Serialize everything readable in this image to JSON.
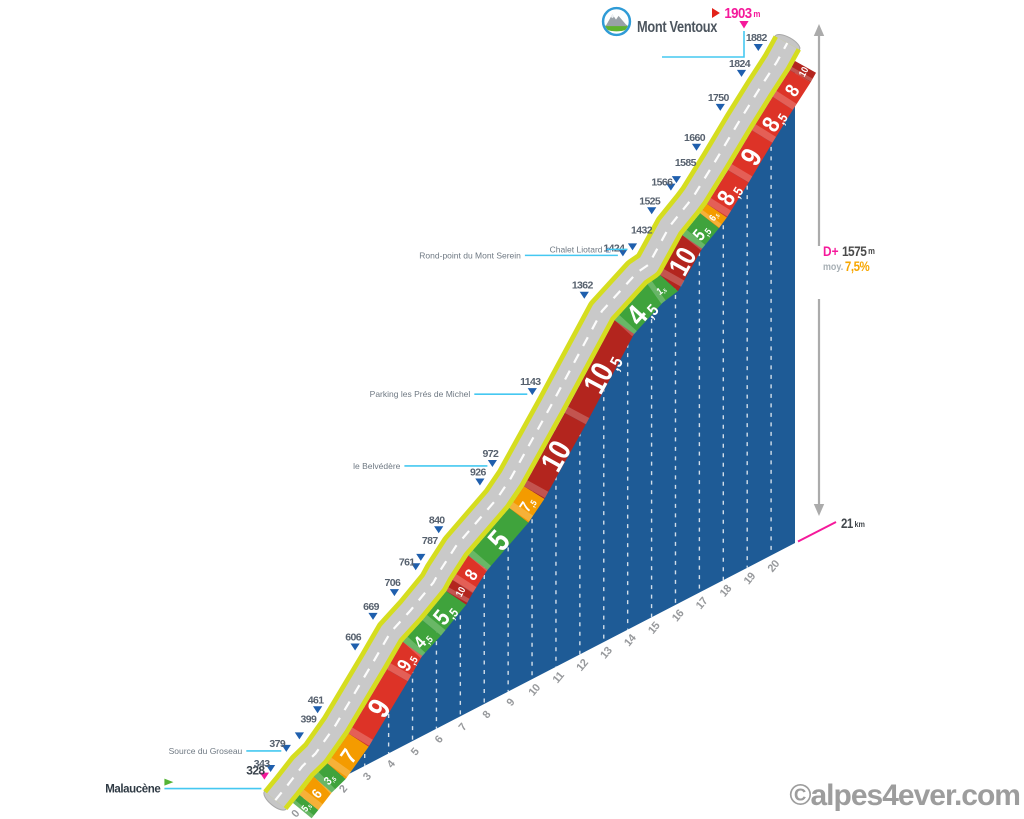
{
  "header": {
    "title": "Mont Ventoux",
    "summit_value": "1903",
    "summit_unit": "m"
  },
  "stats": {
    "dplus_label": "D+",
    "dplus_value": "1575",
    "dplus_unit": "m",
    "avg_label": "moy.",
    "avg_value": "7,5%",
    "distance_value": "21",
    "distance_unit": "km"
  },
  "watermark": "©alpes4ever.com",
  "chart_data": {
    "type": "area",
    "start": {
      "name": "Malaucène",
      "altitude_m": 328
    },
    "summit": {
      "name": "Mont Ventoux",
      "altitude_m": 1903
    },
    "total_distance_km": 21,
    "elevation_gain_m": 1575,
    "avg_gradient_pct": 7.5,
    "altitude_marks": [
      328,
      343,
      379,
      399,
      461,
      606,
      669,
      706,
      761,
      787,
      840,
      926,
      972,
      1143,
      1362,
      1424,
      1432,
      1525,
      1566,
      1585,
      1660,
      1750,
      1824,
      1882,
      1903
    ],
    "gradient_segments_pct": [
      5.5,
      6,
      3.5,
      7,
      9,
      9.5,
      4.5,
      5.5,
      10,
      8,
      5,
      7.5,
      10,
      10.5,
      4.5,
      1.5,
      10,
      5.5,
      6.5,
      8.5,
      9,
      8.5,
      8,
      10
    ],
    "km_ticks": [
      0,
      1,
      2,
      3,
      4,
      5,
      6,
      7,
      8,
      9,
      10,
      11,
      12,
      13,
      14,
      15,
      16,
      17,
      18,
      19,
      20
    ],
    "locations": [
      {
        "name": "Source du Groseau",
        "altitude_m": 379
      },
      {
        "name": "le Belvédère",
        "altitude_m": 972
      },
      {
        "name": "Parking les Prés de Michel",
        "altitude_m": 1143
      },
      {
        "name": "Rond-point du Mont Serein",
        "altitude_m": 1424
      },
      {
        "name": "Chalet Liotard",
        "altitude_m": 1432
      }
    ],
    "colors": {
      "area_blue": "#1E5B96",
      "road_gray": "#C9C9C9",
      "road_edge_yellow": "#D5DD1F",
      "grade_green": "#3FA33C",
      "grade_orange": "#F49B00",
      "grade_red": "#DD3327",
      "grade_dark_red": "#B3251E",
      "marker_blue": "#1F5FAD",
      "magenta": "#F5199B",
      "cyan": "#45C8F1",
      "stat_orange": "#F7A600",
      "start_green": "#54B435"
    }
  }
}
